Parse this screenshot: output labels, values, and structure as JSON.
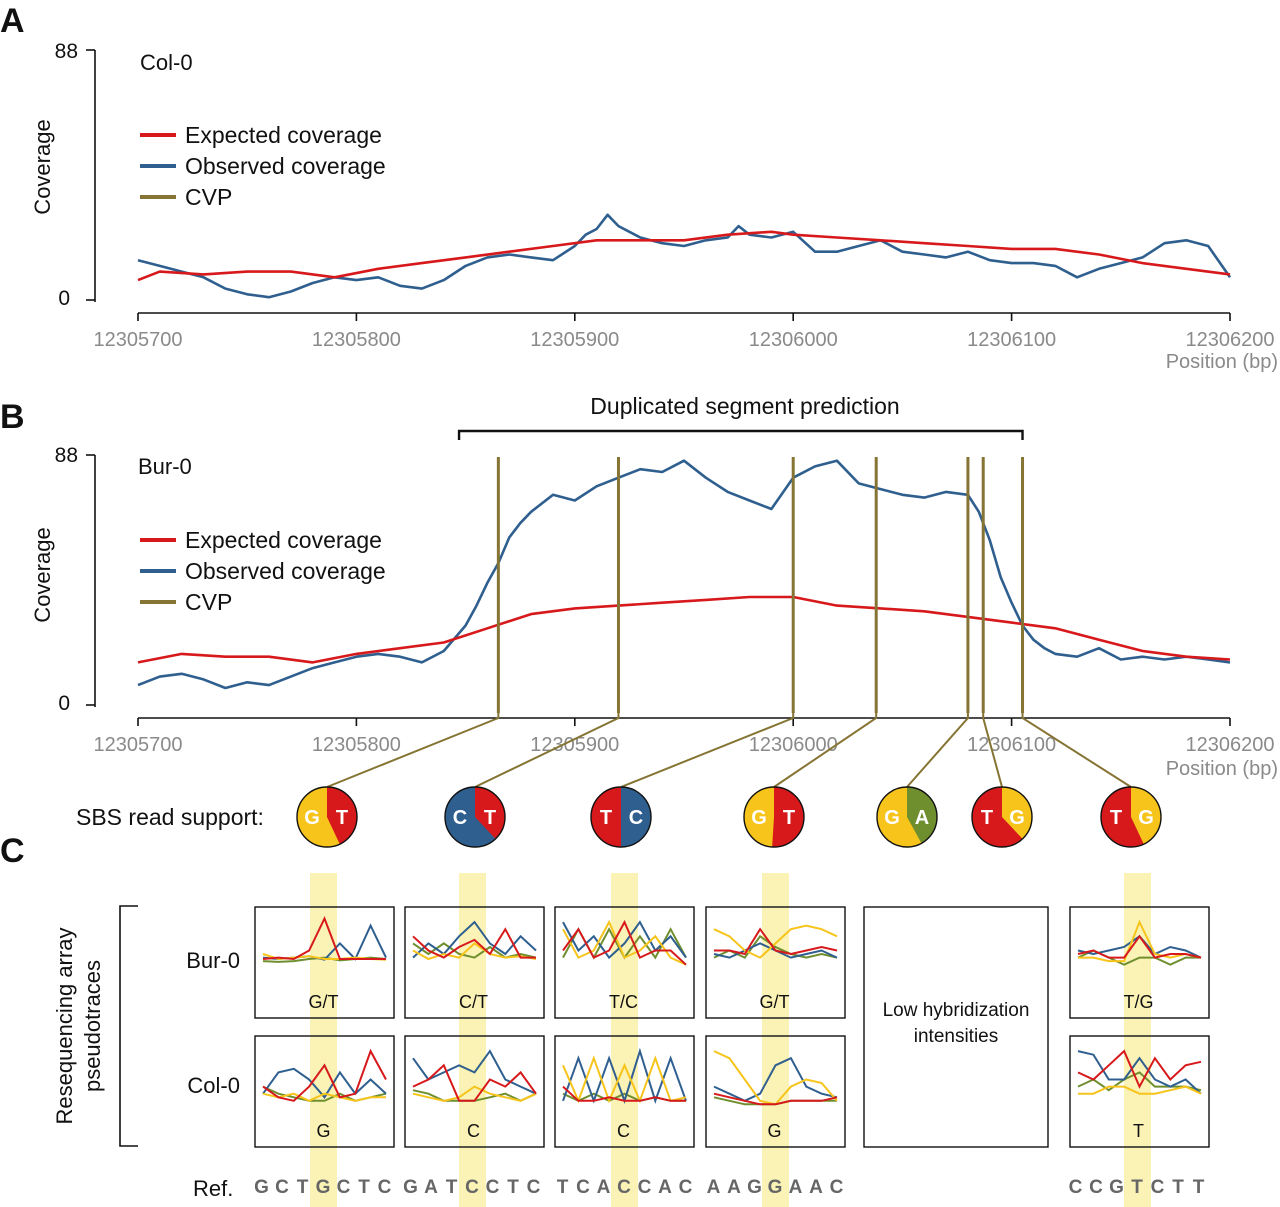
{
  "panels": {
    "a": "A",
    "b": "B",
    "c": "C"
  },
  "colors": {
    "expected": "#d7191c",
    "observed": "#2f5f8f",
    "cvp": "#857433",
    "G": "#f6c41a",
    "T": "#d7191c",
    "C": "#2f5f8f",
    "A": "#6f8f2f",
    "highlight": "#fbf2b5",
    "tick": "#8a8a8a"
  },
  "legend": [
    "Expected coverage",
    "Observed coverage",
    "CVP"
  ],
  "position_label": "Position (bp)",
  "chart_data": [
    {
      "type": "line",
      "panel": "A",
      "sample": "Col-0",
      "ylabel": "Coverage",
      "xlabel": "Position (bp)",
      "xlim": [
        12305700,
        12306200
      ],
      "ylim": [
        0,
        88
      ],
      "y_ticks": [
        0,
        88
      ],
      "x_ticks": [
        12305700,
        12305800,
        12305900,
        12306000,
        12306100,
        12306200
      ],
      "series": [
        {
          "name": "Expected coverage",
          "x": [
            12305700,
            12305710,
            12305730,
            12305750,
            12305770,
            12305790,
            12305810,
            12305830,
            12305850,
            12305870,
            12305890,
            12305910,
            12305930,
            12305950,
            12305970,
            12305990,
            12306000,
            12306020,
            12306040,
            12306060,
            12306080,
            12306100,
            12306120,
            12306140,
            12306160,
            12306180,
            12306200
          ],
          "values": [
            7,
            10,
            9,
            10,
            10,
            8,
            11,
            13,
            15,
            17,
            19,
            21,
            21,
            21,
            23,
            24,
            23,
            22,
            21,
            20,
            19,
            18,
            18,
            16,
            13,
            11,
            9
          ]
        },
        {
          "name": "Observed coverage",
          "x": [
            12305700,
            12305710,
            12305720,
            12305730,
            12305740,
            12305750,
            12305760,
            12305770,
            12305780,
            12305790,
            12305800,
            12305810,
            12305820,
            12305830,
            12305840,
            12305850,
            12305860,
            12305870,
            12305880,
            12305890,
            12305900,
            12305905,
            12305910,
            12305915,
            12305920,
            12305930,
            12305940,
            12305950,
            12305960,
            12305970,
            12305975,
            12305980,
            12305990,
            12306000,
            12306010,
            12306020,
            12306030,
            12306040,
            12306050,
            12306060,
            12306070,
            12306080,
            12306090,
            12306100,
            12306110,
            12306120,
            12306130,
            12306140,
            12306150,
            12306160,
            12306170,
            12306180,
            12306190,
            12306200
          ],
          "values": [
            14,
            12,
            10,
            8,
            4,
            2,
            1,
            3,
            6,
            8,
            7,
            8,
            5,
            4,
            7,
            12,
            15,
            16,
            15,
            14,
            19,
            23,
            25,
            30,
            26,
            22,
            20,
            19,
            21,
            22,
            26,
            23,
            22,
            24,
            17,
            17,
            19,
            21,
            17,
            16,
            15,
            17,
            14,
            13,
            13,
            12,
            8,
            11,
            13,
            15,
            20,
            21,
            19,
            8
          ]
        }
      ]
    },
    {
      "type": "line",
      "panel": "B",
      "sample": "Bur-0",
      "ylabel": "Coverage",
      "xlabel": "Position (bp)",
      "xlim": [
        12305700,
        12306200
      ],
      "ylim": [
        0,
        88
      ],
      "y_ticks": [
        0,
        88
      ],
      "x_ticks": [
        12305700,
        12305800,
        12305900,
        12306000,
        12306100,
        12306200
      ],
      "annotation": "Duplicated segment prediction",
      "annotation_range": [
        12305847,
        12306105
      ],
      "cvp_positions": [
        12305865,
        12305920,
        12306000,
        12306038,
        12306080,
        12306087,
        12306105
      ],
      "series": [
        {
          "name": "Expected coverage",
          "x": [
            12305700,
            12305720,
            12305740,
            12305760,
            12305780,
            12305800,
            12305820,
            12305840,
            12305860,
            12305880,
            12305900,
            12305920,
            12305940,
            12305960,
            12305980,
            12306000,
            12306020,
            12306040,
            12306060,
            12306080,
            12306100,
            12306120,
            12306140,
            12306160,
            12306180,
            12306200
          ],
          "values": [
            15,
            18,
            17,
            17,
            15,
            18,
            20,
            22,
            27,
            32,
            34,
            35,
            36,
            37,
            38,
            38,
            35,
            34,
            33,
            31,
            29,
            27,
            23,
            19,
            17,
            16
          ]
        },
        {
          "name": "Observed coverage",
          "x": [
            12305700,
            12305710,
            12305720,
            12305730,
            12305740,
            12305750,
            12305760,
            12305770,
            12305780,
            12305790,
            12305800,
            12305810,
            12305820,
            12305830,
            12305840,
            12305850,
            12305855,
            12305860,
            12305865,
            12305870,
            12305875,
            12305880,
            12305890,
            12305900,
            12305910,
            12305920,
            12305930,
            12305940,
            12305950,
            12305960,
            12305970,
            12305980,
            12305990,
            12306000,
            12306010,
            12306020,
            12306030,
            12306040,
            12306050,
            12306060,
            12306070,
            12306080,
            12306085,
            12306090,
            12306095,
            12306100,
            12306105,
            12306110,
            12306115,
            12306120,
            12306130,
            12306140,
            12306150,
            12306160,
            12306170,
            12306180,
            12306190,
            12306200
          ],
          "values": [
            7,
            10,
            11,
            9,
            6,
            8,
            7,
            10,
            13,
            15,
            17,
            18,
            17,
            15,
            19,
            28,
            35,
            43,
            50,
            59,
            64,
            68,
            74,
            72,
            77,
            80,
            83,
            82,
            86,
            80,
            75,
            72,
            69,
            80,
            84,
            86,
            78,
            76,
            74,
            73,
            75,
            74,
            68,
            58,
            45,
            36,
            28,
            23,
            20,
            18,
            17,
            20,
            16,
            17,
            16,
            17,
            16,
            15
          ]
        }
      ]
    }
  ],
  "sbs": {
    "label": "SBS read support:",
    "pies": [
      {
        "left": "G",
        "right": "T",
        "frac_left": 0.57,
        "left_color": "G",
        "right_color": "T"
      },
      {
        "left": "C",
        "right": "T",
        "frac_left": 0.62,
        "left_color": "C",
        "right_color": "T"
      },
      {
        "left": "T",
        "right": "C",
        "frac_left": 0.5,
        "left_color": "T",
        "right_color": "C"
      },
      {
        "left": "G",
        "right": "T",
        "frac_left": 0.49,
        "left_color": "G",
        "right_color": "T"
      },
      {
        "left": "G",
        "right": "A",
        "frac_left": 0.58,
        "left_color": "G",
        "right_color": "A"
      },
      {
        "left": "T",
        "right": "G",
        "frac_left": 0.62,
        "left_color": "T",
        "right_color": "G"
      },
      {
        "left": "T",
        "right": "G",
        "frac_left": 0.57,
        "left_color": "T",
        "right_color": "G"
      }
    ]
  },
  "resequencing": {
    "ylabel_line1": "Resequencing array",
    "ylabel_line2": "pseudotraces",
    "rows": [
      "Bur-0",
      "Col-0"
    ],
    "low_hybridization_line1": "Low hybridization",
    "low_hybridization_line2": "intensities",
    "ref_label": "Ref.",
    "boxes": [
      {
        "bur_call": "G/T",
        "col_call": "G",
        "ref": [
          "G",
          "C",
          "T",
          "G",
          "C",
          "T",
          "C"
        ]
      },
      {
        "bur_call": "C/T",
        "col_call": "C",
        "ref": [
          "G",
          "A",
          "T",
          "C",
          "C",
          "T",
          "C"
        ]
      },
      {
        "bur_call": "T/C",
        "col_call": "C",
        "ref": [
          "T",
          "C",
          "A",
          "C",
          "C",
          "A",
          "C"
        ]
      },
      {
        "bur_call": "G/T",
        "col_call": "G",
        "ref": [
          "A",
          "A",
          "G",
          "G",
          "A",
          "A",
          "C"
        ]
      },
      {
        "bur_call": "T/G",
        "col_call": "T",
        "ref": [
          "C",
          "C",
          "G",
          "T",
          "C",
          "T",
          "T"
        ]
      }
    ]
  }
}
